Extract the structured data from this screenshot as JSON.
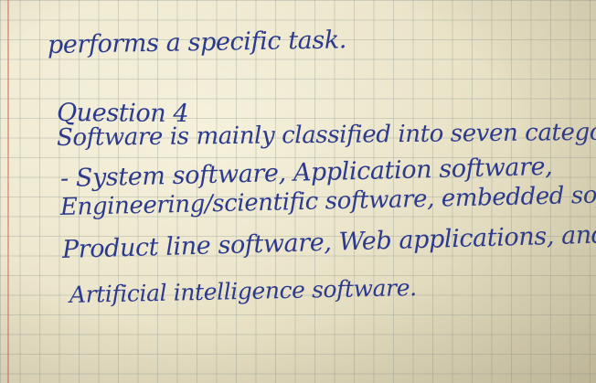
{
  "handwritten_page": {
    "lines": [
      "performs a specific task.",
      "Question 4",
      "Software is mainly classified into seven categories",
      "- System software, Application software,",
      "Engineering/scientific software, embedded software,",
      "Product line software, Web applications, and",
      "Artificial intelligence software."
    ],
    "ink_color": "#2c3a8e",
    "paper_color": "#ece6cd",
    "grid_color": "#969e96"
  }
}
